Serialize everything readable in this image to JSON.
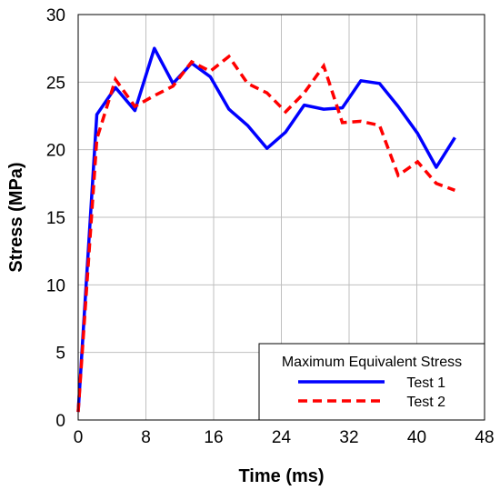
{
  "chart_data": {
    "type": "line",
    "xlabel": "Time (ms)",
    "ylabel": "Stress (MPa)",
    "xlim": [
      0,
      48
    ],
    "ylim": [
      0,
      30
    ],
    "xticks": [
      "0",
      "8",
      "16",
      "24",
      "32",
      "40",
      "48"
    ],
    "yticks": [
      "0",
      "5",
      "10",
      "15",
      "20",
      "25",
      "30"
    ],
    "grid": true,
    "legend": {
      "title": "Maximum Equivalent Stress",
      "placement": "bottom-right"
    },
    "series": [
      {
        "name": "Test 1",
        "color": "#0000ff",
        "style": "solid",
        "x": [
          0,
          2.2,
          4.4,
          6.7,
          9.0,
          11.2,
          13.4,
          15.6,
          17.8,
          20.0,
          22.3,
          24.5,
          26.7,
          29.0,
          31.2,
          33.4,
          35.6,
          37.8,
          40.1,
          42.3,
          44.5
        ],
        "y": [
          0.6,
          22.6,
          24.6,
          22.9,
          27.5,
          24.9,
          26.4,
          25.4,
          23.0,
          21.8,
          20.1,
          21.3,
          23.3,
          23.0,
          23.1,
          25.1,
          24.9,
          23.2,
          21.2,
          18.7,
          20.9
        ]
      },
      {
        "name": "Test 2",
        "color": "#ff0000",
        "style": "dashed",
        "x": [
          0,
          2.2,
          4.4,
          6.7,
          9.0,
          11.2,
          13.4,
          15.6,
          17.8,
          20.0,
          22.3,
          24.5,
          26.7,
          29.0,
          31.2,
          33.4,
          35.6,
          37.8,
          40.1,
          42.3,
          44.5
        ],
        "y": [
          0.6,
          20.8,
          25.2,
          23.2,
          24.0,
          24.7,
          26.5,
          25.8,
          26.9,
          24.9,
          24.2,
          22.8,
          24.2,
          26.2,
          22.0,
          22.1,
          21.8,
          18.1,
          19.1,
          17.5,
          17.0
        ]
      }
    ]
  }
}
